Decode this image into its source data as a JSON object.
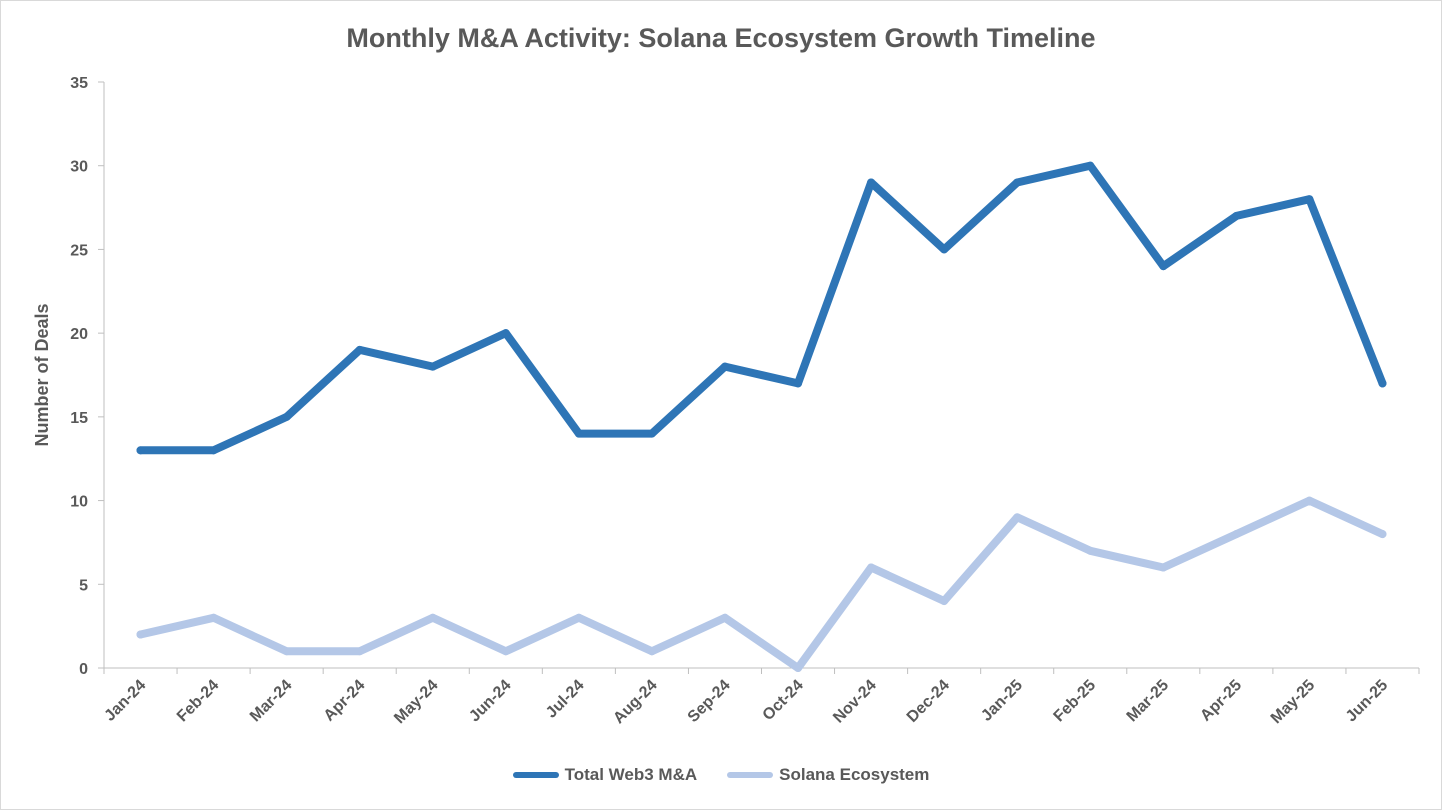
{
  "chart_data": {
    "type": "line",
    "title": "Monthly M&A Activity: Solana Ecosystem Growth Timeline",
    "xlabel": "",
    "ylabel": "Number of Deals",
    "ylim": [
      0,
      35
    ],
    "yticks": [
      0,
      5,
      10,
      15,
      20,
      25,
      30,
      35
    ],
    "grid": false,
    "legend_position": "bottom",
    "categories": [
      "Jan-24",
      "Feb-24",
      "Mar-24",
      "Apr-24",
      "May-24",
      "Jun-24",
      "Jul-24",
      "Aug-24",
      "Sep-24",
      "Oct-24",
      "Nov-24",
      "Dec-24",
      "Jan-25",
      "Feb-25",
      "Mar-25",
      "Apr-25",
      "May-25",
      "Jun-25"
    ],
    "series": [
      {
        "name": "Total Web3 M&A",
        "color": "#2e75b6",
        "values": [
          13,
          13,
          15,
          19,
          18,
          20,
          14,
          14,
          18,
          17,
          29,
          25,
          29,
          30,
          24,
          27,
          28,
          17
        ]
      },
      {
        "name": "Solana Ecosystem",
        "color": "#b4c7e7",
        "values": [
          2,
          3,
          1,
          1,
          3,
          1,
          3,
          1,
          3,
          0,
          6,
          4,
          9,
          7,
          6,
          8,
          10,
          8
        ]
      }
    ]
  }
}
